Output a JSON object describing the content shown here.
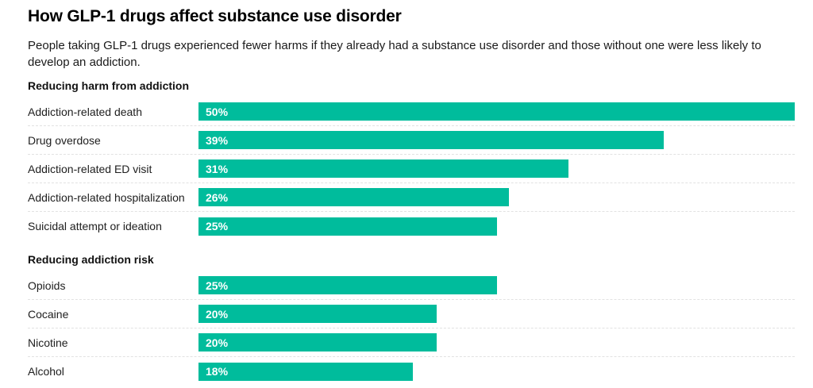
{
  "title": "How GLP-1 drugs affect substance use disorder",
  "subtitle": "People taking GLP-1 drugs experienced fewer harms if they already had a substance use disorder and those without one were less likely to develop an addiction.",
  "colors": {
    "bar": "#00bc9c",
    "separator": "#e2e2e2",
    "title_text": "#000000",
    "body_text": "#202020",
    "bar_label_text": "#ffffff"
  },
  "chart_data": {
    "type": "bar",
    "orientation": "horizontal",
    "title": "How GLP-1 drugs affect substance use disorder",
    "subtitle": "People taking GLP-1 drugs experienced fewer harms if they already had a substance use disorder and those without one were less likely to develop an addiction.",
    "unit": "%",
    "axis_max": 50,
    "grid": false,
    "legend": "none",
    "value_labels_inside_bars": true,
    "groups": [
      {
        "label": "Reducing harm from addiction",
        "rows": [
          {
            "category": "Addiction-related death",
            "value": 50,
            "value_label": "50%"
          },
          {
            "category": "Drug overdose",
            "value": 39,
            "value_label": "39%"
          },
          {
            "category": "Addiction-related ED visit",
            "value": 31,
            "value_label": "31%"
          },
          {
            "category": "Addiction-related hospitalization",
            "value": 26,
            "value_label": "26%"
          },
          {
            "category": "Suicidal attempt or ideation",
            "value": 25,
            "value_label": "25%"
          }
        ]
      },
      {
        "label": "Reducing addiction risk",
        "rows": [
          {
            "category": "Opioids",
            "value": 25,
            "value_label": "25%"
          },
          {
            "category": "Cocaine",
            "value": 20,
            "value_label": "20%"
          },
          {
            "category": "Nicotine",
            "value": 20,
            "value_label": "20%"
          },
          {
            "category": "Alcohol",
            "value": 18,
            "value_label": "18%"
          }
        ]
      }
    ]
  }
}
